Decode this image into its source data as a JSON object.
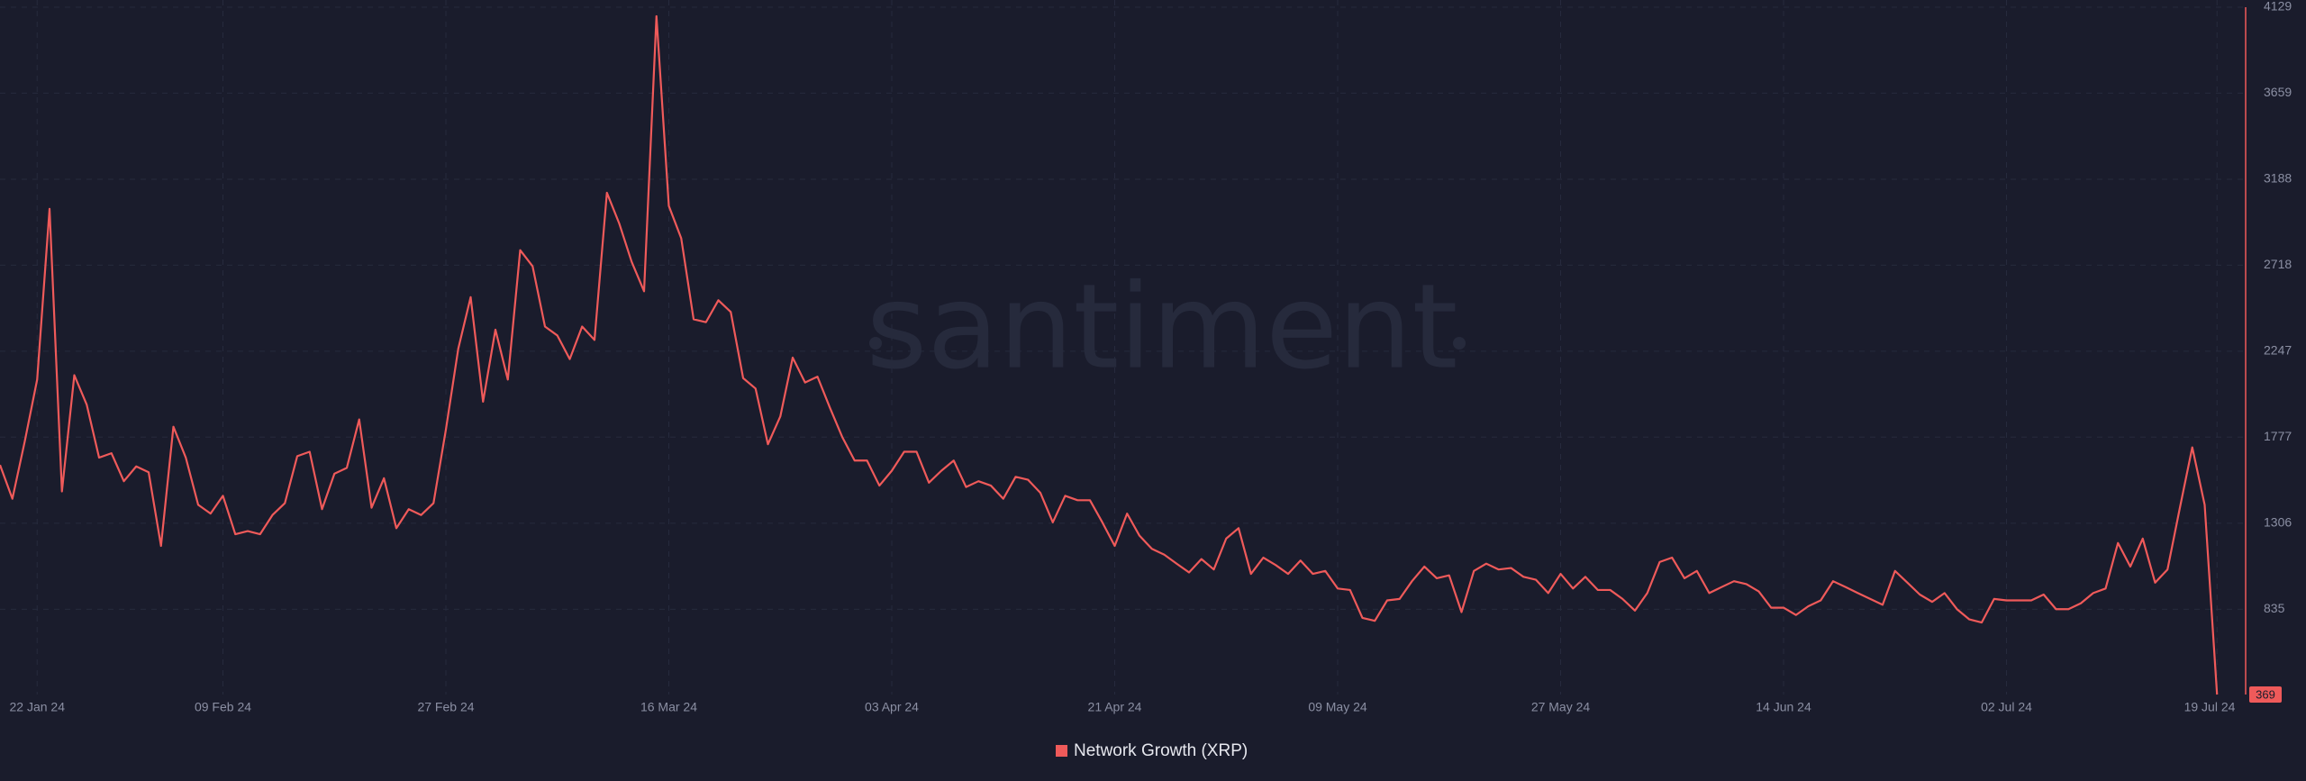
{
  "chart_data": {
    "type": "line",
    "watermark": "santiment",
    "categories": [
      null,
      null,
      null,
      "22 Jan 24",
      null,
      null,
      null,
      null,
      null,
      null,
      null,
      null,
      null,
      null,
      null,
      null,
      null,
      null,
      "09 Feb 24",
      null,
      null,
      null,
      null,
      null,
      null,
      null,
      null,
      null,
      null,
      null,
      null,
      null,
      null,
      null,
      null,
      null,
      "27 Feb 24",
      null,
      null,
      null,
      null,
      null,
      null,
      null,
      null,
      null,
      null,
      null,
      null,
      null,
      null,
      null,
      null,
      null,
      "16 Mar 24",
      null,
      null,
      null,
      null,
      null,
      null,
      null,
      null,
      null,
      null,
      null,
      null,
      null,
      null,
      null,
      null,
      null,
      "03 Apr 24",
      null,
      null,
      null,
      null,
      null,
      null,
      null,
      null,
      null,
      null,
      null,
      null,
      null,
      null,
      null,
      null,
      null,
      "21 Apr 24",
      null,
      null,
      null,
      null,
      null,
      null,
      null,
      null,
      null,
      null,
      null,
      null,
      null,
      null,
      null,
      null,
      null,
      "09 May 24",
      null,
      null,
      null,
      null,
      null,
      null,
      null,
      null,
      null,
      null,
      null,
      null,
      null,
      null,
      null,
      null,
      null,
      "27 May 24",
      null,
      null,
      null,
      null,
      null,
      null,
      null,
      null,
      null,
      null,
      null,
      null,
      null,
      null,
      null,
      null,
      null,
      "14 Jun 24",
      null,
      null,
      null,
      null,
      null,
      null,
      null,
      null,
      null,
      null,
      null,
      null,
      null,
      null,
      null,
      null,
      null,
      "02 Jul 24",
      null,
      null,
      null,
      null,
      null,
      null,
      null,
      null,
      null,
      null,
      null,
      null,
      null,
      null,
      null,
      null,
      "19 Jul 24"
    ],
    "series": [
      {
        "name": "Network Growth (XRP)",
        "color": "#ef5a5a",
        "values": [
          1625,
          1440,
          1754,
          2092,
          3026,
          1480,
          2116,
          1955,
          1665,
          1689,
          1536,
          1617,
          1585,
          1182,
          1834,
          1665,
          1407,
          1359,
          1456,
          1246,
          1263,
          1246,
          1351,
          1416,
          1673,
          1697,
          1383,
          1577,
          1609,
          1874,
          1391,
          1552,
          1279,
          1383,
          1351,
          1416,
          1818,
          2261,
          2543,
          1971,
          2365,
          2092,
          2800,
          2712,
          2382,
          2333,
          2204,
          2382,
          2309,
          3114,
          2945,
          2736,
          2575,
          4080,
          3042,
          2865,
          2422,
          2406,
          2526,
          2462,
          2100,
          2043,
          1738,
          1890,
          2212,
          2076,
          2108,
          1939,
          1778,
          1649,
          1649,
          1512,
          1593,
          1697,
          1697,
          1528,
          1593,
          1649,
          1504,
          1536,
          1512,
          1440,
          1560,
          1544,
          1472,
          1311,
          1456,
          1432,
          1432,
          1311,
          1182,
          1359,
          1238,
          1166,
          1134,
          1085,
          1037,
          1110,
          1053,
          1222,
          1279,
          1029,
          1118,
          1077,
          1029,
          1102,
          1029,
          1045,
          949,
          941,
          788,
          772,
          884,
          892,
          989,
          1069,
          1005,
          1021,
          820,
          1045,
          1085,
          1053,
          1061,
          1013,
          997,
          924,
          1029,
          949,
          1013,
          941,
          941,
          892,
          828,
          924,
          1094,
          1118,
          1005,
          1045,
          924,
          957,
          989,
          973,
          933,
          844,
          844,
          804,
          852,
          884,
          989,
          957,
          924,
          892,
          860,
          1045,
          981,
          916,
          876,
          924,
          836,
          780,
          763,
          892,
          884,
          884,
          884,
          916,
          836,
          836,
          868,
          924,
          949,
          1198,
          1069,
          1222,
          981,
          1053,
          1391,
          1721,
          1407,
          369
        ]
      }
    ],
    "ylim": [
      369,
      4129
    ],
    "yticks": [
      835,
      1306,
      1777,
      2247,
      2718,
      3188,
      3659,
      4129
    ],
    "grid": true,
    "legend": "bottom"
  }
}
